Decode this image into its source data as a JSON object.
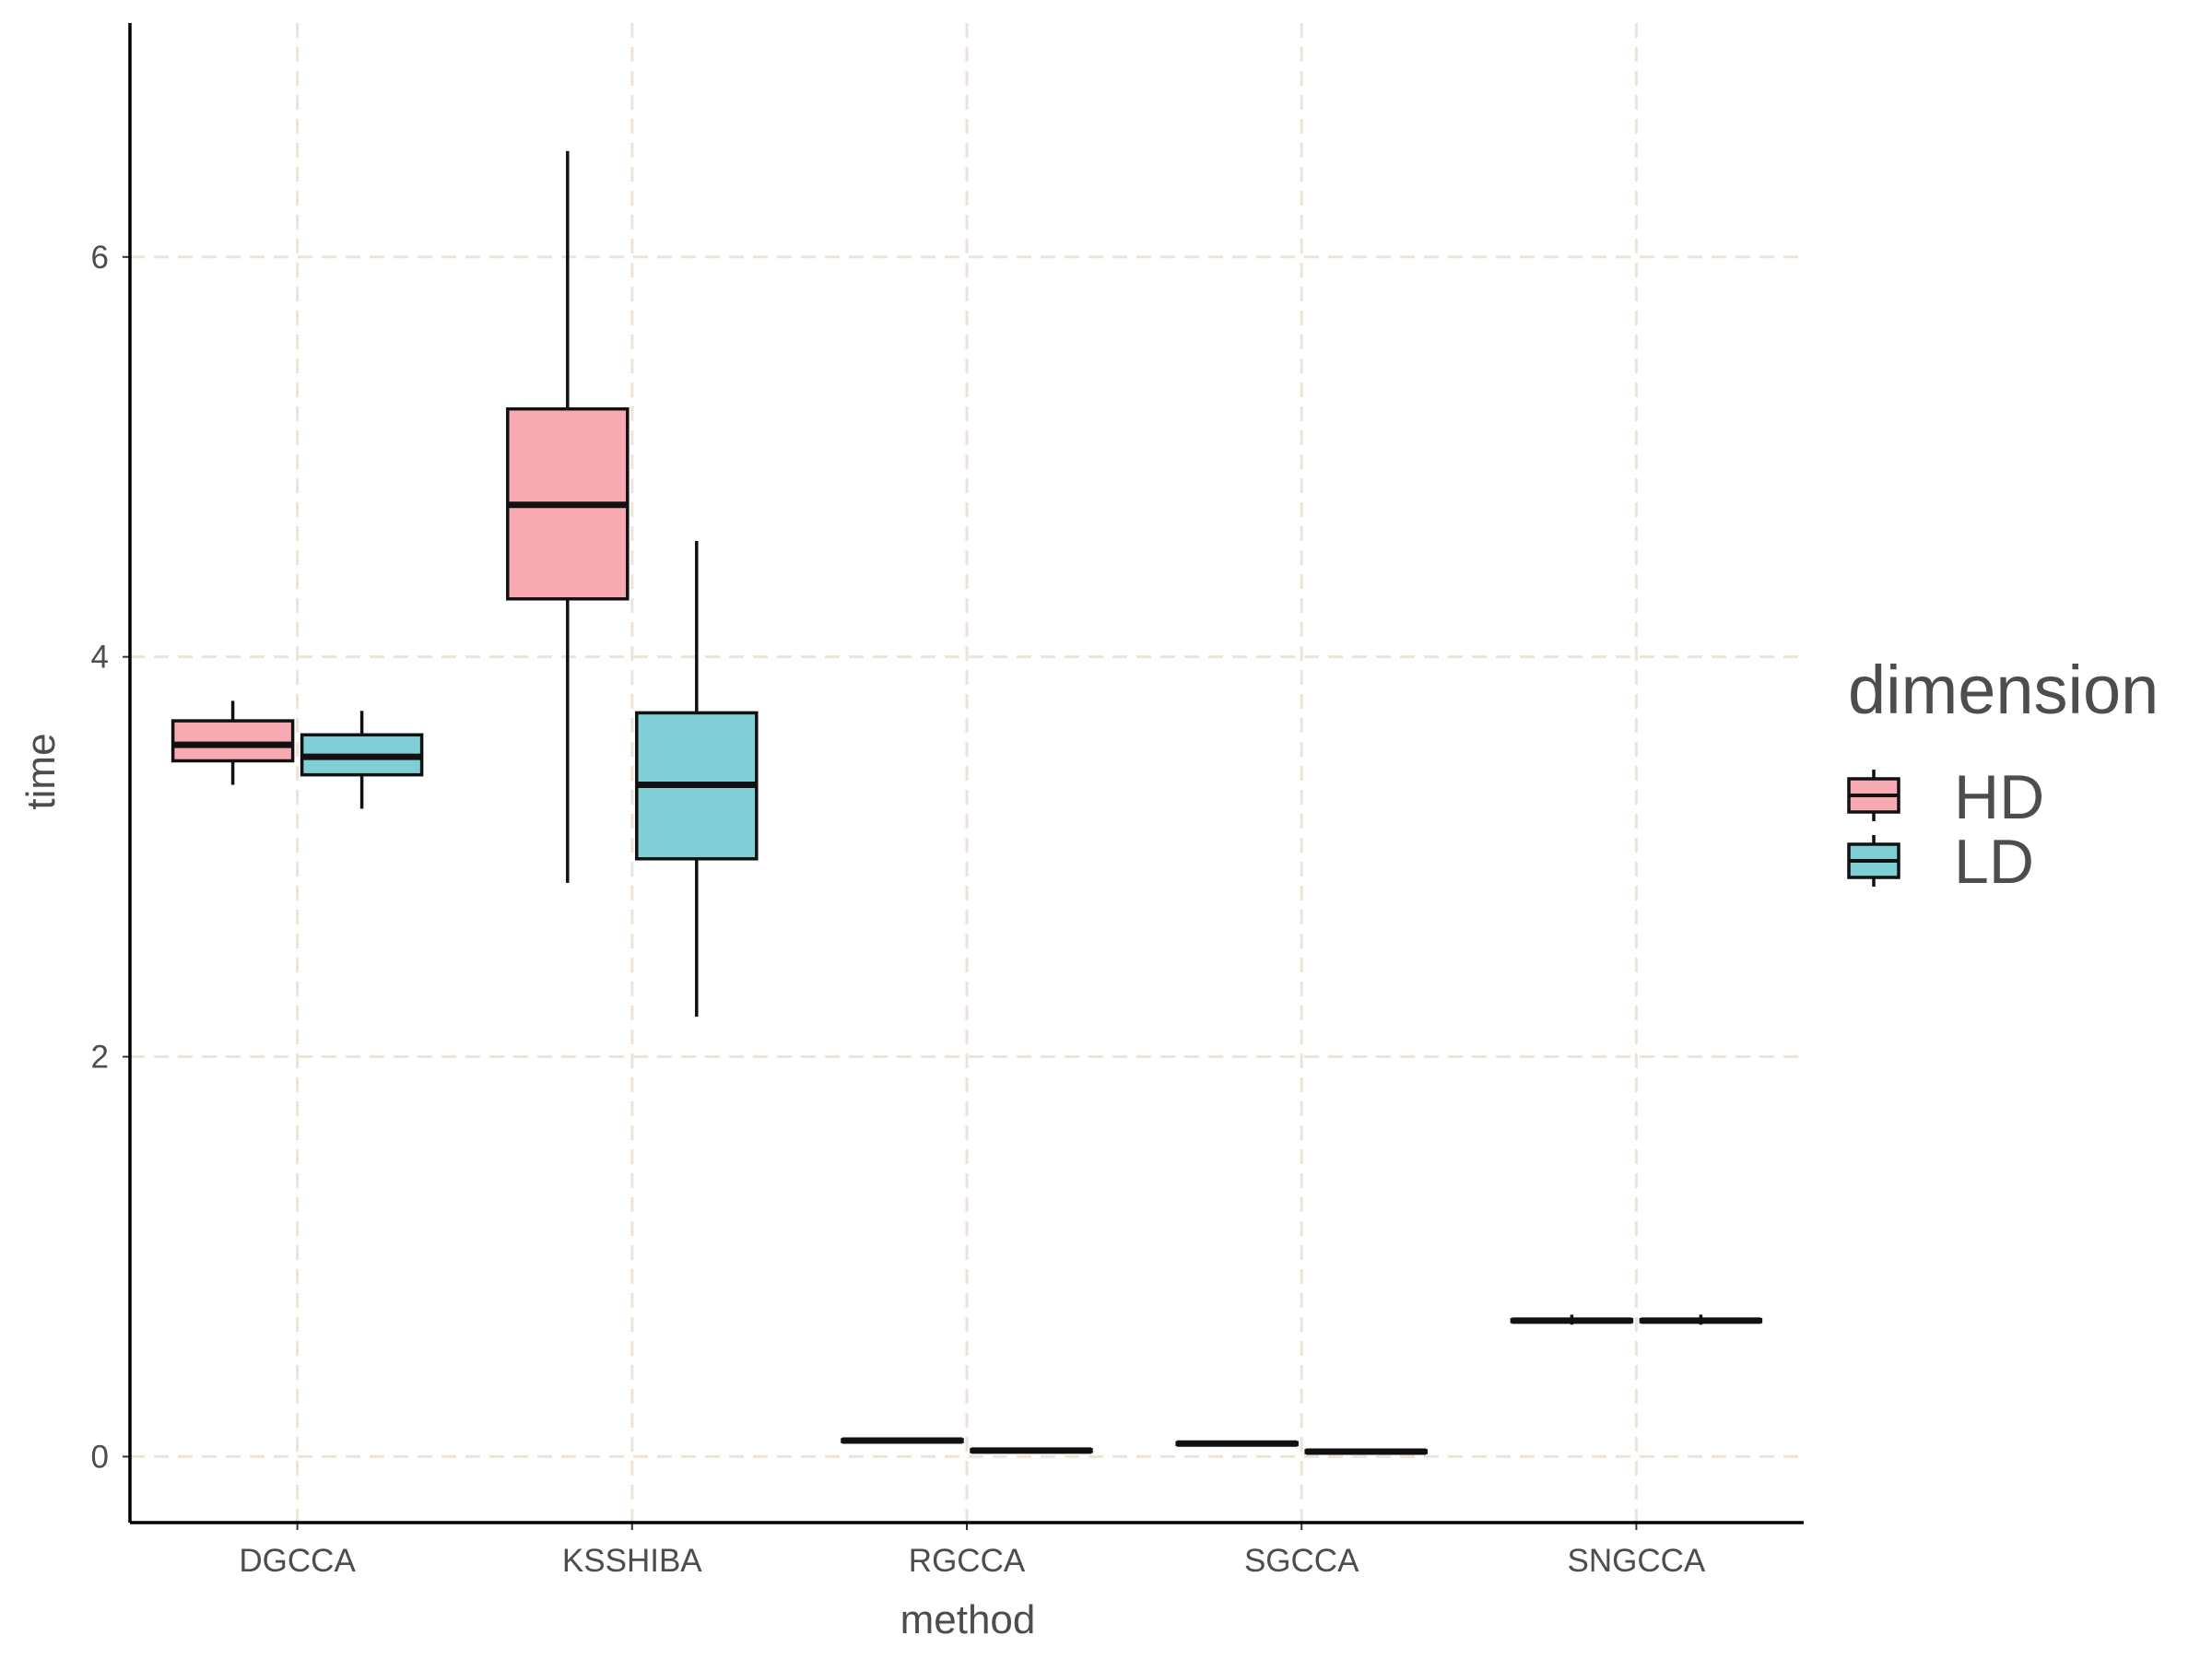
{
  "chart_data": {
    "type": "box",
    "xlabel": "method",
    "ylabel": "time",
    "ylim": [
      -0.33,
      7.17
    ],
    "yticks": [
      0,
      2,
      4,
      6
    ],
    "grid": true,
    "legend": {
      "title": "dimension",
      "placement": "right",
      "entries": [
        "HD",
        "LD"
      ]
    },
    "categories": [
      "DGCCA",
      "KSSHIBA",
      "RGCCA",
      "SGCCA",
      "SNGCCA"
    ],
    "series": [
      {
        "name": "HD",
        "color": "#f8aab2",
        "boxes": [
          {
            "min": 3.36,
            "q1": 3.48,
            "median": 3.56,
            "q3": 3.68,
            "max": 3.78
          },
          {
            "min": 2.87,
            "q1": 4.29,
            "median": 4.76,
            "q3": 5.24,
            "max": 6.53
          },
          {
            "min": 0.07,
            "q1": 0.075,
            "median": 0.08,
            "q3": 0.085,
            "max": 0.09
          },
          {
            "min": 0.055,
            "q1": 0.06,
            "median": 0.065,
            "q3": 0.07,
            "max": 0.075
          },
          {
            "min": 0.66,
            "q1": 0.675,
            "median": 0.68,
            "q3": 0.685,
            "max": 0.71
          }
        ]
      },
      {
        "name": "LD",
        "color": "#80ced6",
        "boxes": [
          {
            "min": 3.24,
            "q1": 3.41,
            "median": 3.5,
            "q3": 3.61,
            "max": 3.73
          },
          {
            "min": 2.2,
            "q1": 2.99,
            "median": 3.36,
            "q3": 3.72,
            "max": 4.58
          },
          {
            "min": 0.02,
            "q1": 0.025,
            "median": 0.03,
            "q3": 0.035,
            "max": 0.04
          },
          {
            "min": 0.015,
            "q1": 0.02,
            "median": 0.025,
            "q3": 0.03,
            "max": 0.035
          },
          {
            "min": 0.66,
            "q1": 0.675,
            "median": 0.68,
            "q3": 0.685,
            "max": 0.71
          }
        ]
      }
    ],
    "colors": {
      "grid": "#eee3d8",
      "axis": "#000000",
      "outline": "#111111"
    }
  }
}
